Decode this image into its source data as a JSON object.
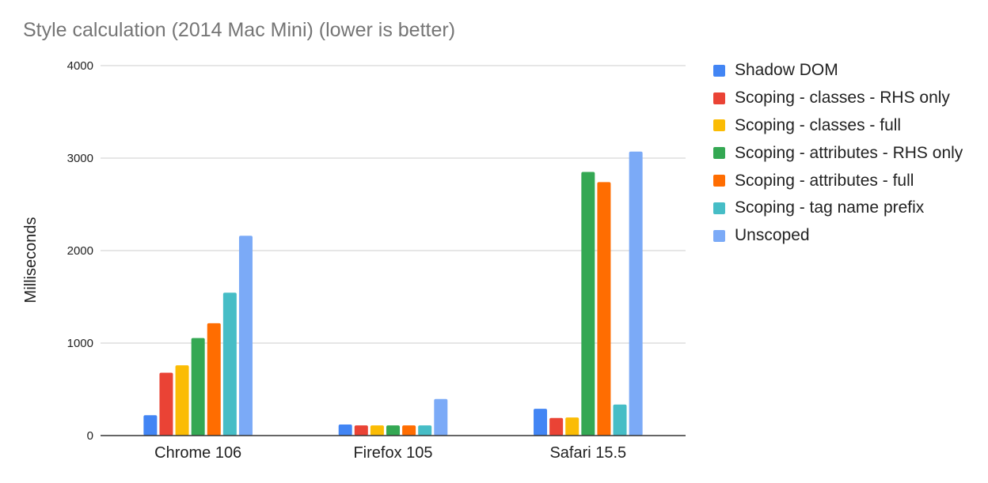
{
  "chart_data": {
    "type": "bar",
    "title": "Style calculation (2014 Mac Mini) (lower is better)",
    "xlabel": "",
    "ylabel": "Milliseconds",
    "ylim": [
      0,
      4000
    ],
    "yticks": [
      0,
      1000,
      2000,
      3000,
      4000
    ],
    "grid": true,
    "legend_position": "right",
    "categories": [
      "Chrome 106",
      "Firefox 105",
      "Safari 15.5"
    ],
    "series": [
      {
        "name": "Shadow DOM",
        "color": "#4285f4",
        "values": [
          220,
          120,
          290
        ]
      },
      {
        "name": "Scoping - classes - RHS only",
        "color": "#ea4335",
        "values": [
          680,
          110,
          190
        ]
      },
      {
        "name": "Scoping - classes - full",
        "color": "#fbbc04",
        "values": [
          760,
          110,
          195
        ]
      },
      {
        "name": "Scoping - attributes - RHS only",
        "color": "#34a853",
        "values": [
          1055,
          110,
          2850
        ]
      },
      {
        "name": "Scoping - attributes - full",
        "color": "#ff6d01",
        "values": [
          1215,
          110,
          2740
        ]
      },
      {
        "name": "Scoping - tag name prefix",
        "color": "#46bdc6",
        "values": [
          1545,
          110,
          335
        ]
      },
      {
        "name": "Unscoped",
        "color": "#7baaf7",
        "values": [
          2160,
          395,
          3070
        ]
      }
    ]
  }
}
